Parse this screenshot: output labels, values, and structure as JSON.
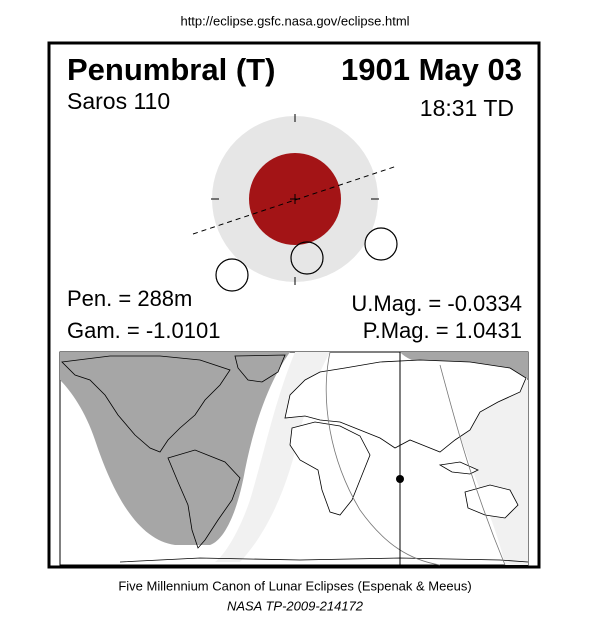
{
  "url": "http://eclipse.gsfc.nasa.gov/eclipse.html",
  "header": {
    "eclipse_type": "Penumbral (T)",
    "date": "1901 May 03",
    "saros": "Saros 110",
    "time": "18:31 TD"
  },
  "parameters": {
    "pen": "Pen. = 288m",
    "gam": "Gam. = -1.0101",
    "umag": "U.Mag. = -0.0334",
    "pmag": "P.Mag. = 1.0431"
  },
  "footer": {
    "canon": "Five Millennium Canon of Lunar Eclipses (Espenak & Meeus)",
    "reference": "NASA TP-2009-214172"
  }
}
